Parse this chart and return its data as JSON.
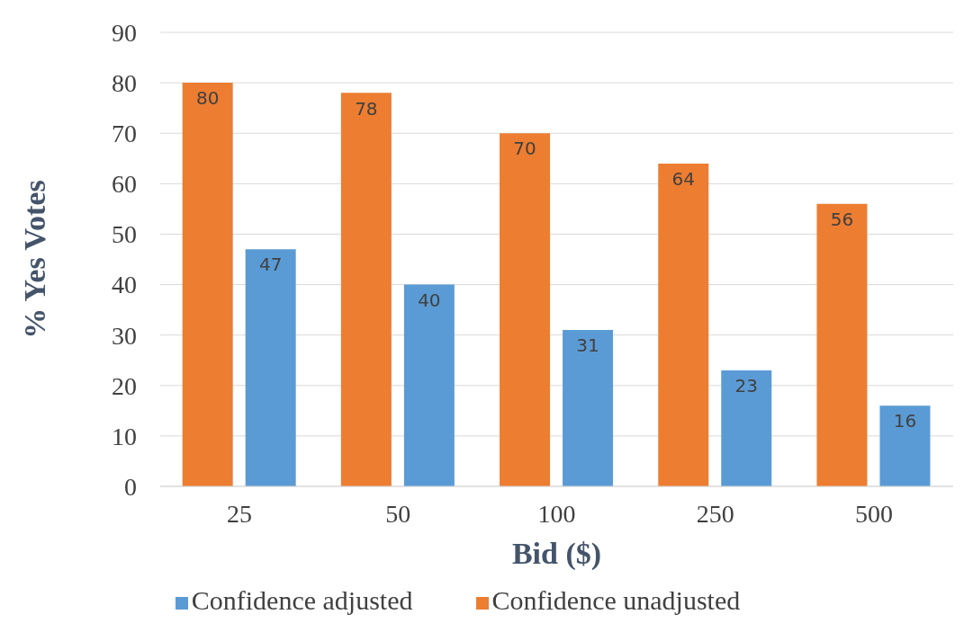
{
  "chart_data": {
    "type": "bar",
    "xlabel": "Bid ($)",
    "ylabel": "% Yes Votes",
    "categories": [
      "25",
      "50",
      "100",
      "250",
      "500"
    ],
    "series": [
      {
        "name": "Confidence unadjusted",
        "color": "#ed7d31",
        "values": [
          80,
          78,
          70,
          64,
          56
        ]
      },
      {
        "name": "Confidence adjusted",
        "color": "#5b9bd5",
        "values": [
          47,
          40,
          31,
          23,
          16
        ]
      }
    ],
    "ylim": [
      0,
      90
    ],
    "yticks": [
      0,
      10,
      20,
      30,
      40,
      50,
      60,
      70,
      80,
      90
    ],
    "grid": "y",
    "legend": "bottom",
    "data_labels": true
  }
}
